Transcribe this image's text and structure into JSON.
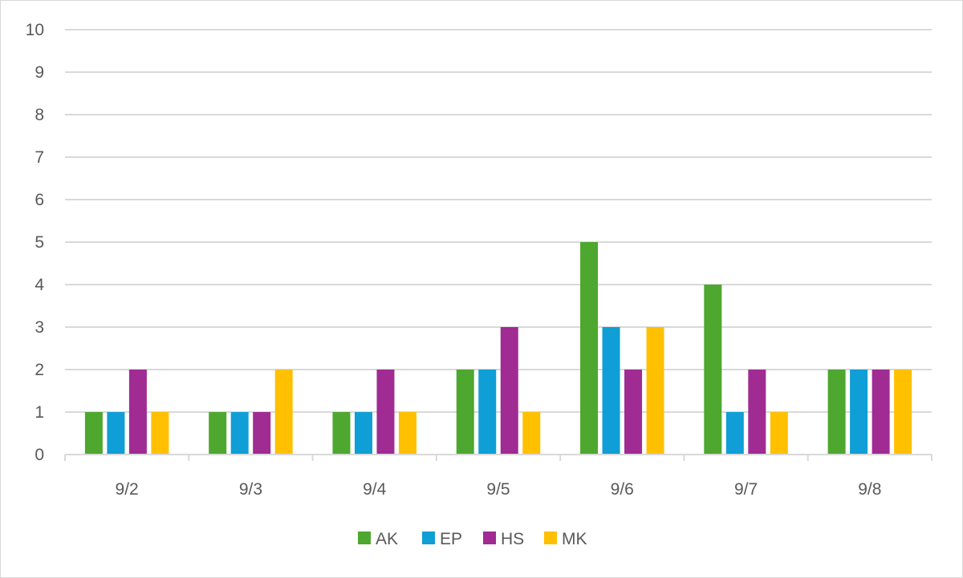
{
  "chart_data": {
    "type": "bar",
    "categories": [
      "9/2",
      "9/3",
      "9/4",
      "9/5",
      "9/6",
      "9/7",
      "9/8"
    ],
    "series": [
      {
        "name": "AK",
        "color": "#4ea72e",
        "values": [
          1,
          1,
          1,
          2,
          5,
          4,
          2
        ]
      },
      {
        "name": "EP",
        "color": "#0f9ed5",
        "values": [
          1,
          1,
          1,
          2,
          3,
          1,
          2
        ]
      },
      {
        "name": "HS",
        "color": "#a02b93",
        "values": [
          2,
          1,
          2,
          3,
          2,
          2,
          2
        ]
      },
      {
        "name": "MK",
        "color": "#ffc000",
        "values": [
          1,
          2,
          1,
          1,
          3,
          1,
          2
        ]
      }
    ],
    "ylim": [
      0,
      10
    ],
    "y_ticks": [
      0,
      1,
      2,
      3,
      4,
      5,
      6,
      7,
      8,
      9,
      10
    ],
    "grid": true,
    "legend_position": "bottom",
    "title": "",
    "xlabel": "",
    "ylabel": ""
  }
}
